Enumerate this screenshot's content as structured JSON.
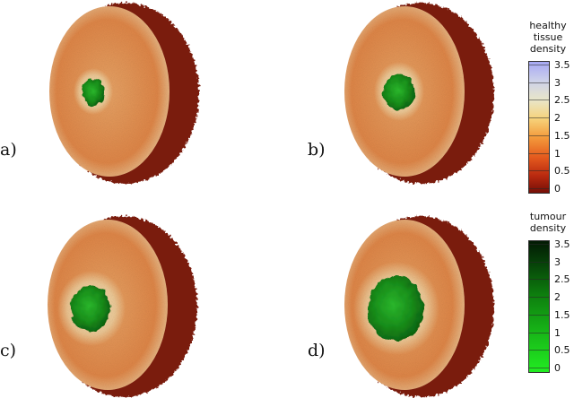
{
  "panels": [
    {
      "label": "a)"
    },
    {
      "label": "b)"
    },
    {
      "label": "c)"
    },
    {
      "label": "d)"
    }
  ],
  "colorbars": {
    "healthy": {
      "title_lines": [
        "healthy",
        "tissue",
        "density"
      ],
      "ticks": [
        "3.5",
        "3",
        "2.5",
        "2",
        "1.5",
        "1",
        "0.5",
        "0"
      ]
    },
    "tumour": {
      "title_lines": [
        "tumour",
        "density"
      ],
      "ticks": [
        "3.5",
        "3",
        "2.5",
        "2",
        "1.5",
        "1",
        "0.5",
        "0"
      ]
    }
  },
  "colors": {
    "rim": "#7a1a0c",
    "face": "#e0894a",
    "halo": "#f1dcae",
    "tumour_dark": "#0f6a12",
    "tumour_bright": "#29b52a"
  }
}
